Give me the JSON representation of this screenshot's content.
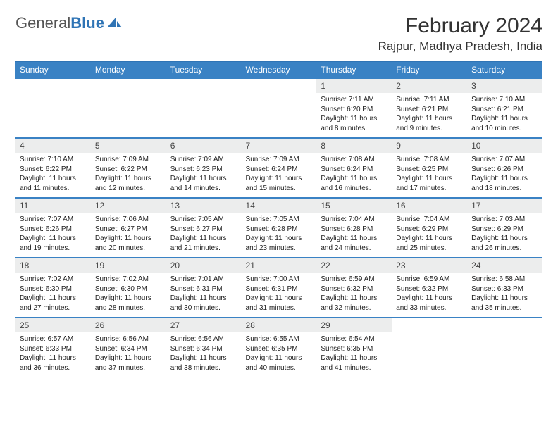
{
  "brand": {
    "part1": "General",
    "part2": "Blue"
  },
  "title": "February 2024",
  "location": "Rajpur, Madhya Pradesh, India",
  "colors": {
    "header_bg": "#3a82c4",
    "header_text": "#ffffff",
    "border": "#2f74b5",
    "daynum_bg": "#eceded",
    "brand_blue": "#2f74b5",
    "brand_gray": "#555555",
    "background": "#ffffff"
  },
  "day_headers": [
    "Sunday",
    "Monday",
    "Tuesday",
    "Wednesday",
    "Thursday",
    "Friday",
    "Saturday"
  ],
  "weeks": [
    [
      {
        "num": "",
        "sunrise": "",
        "sunset": "",
        "daylight": ""
      },
      {
        "num": "",
        "sunrise": "",
        "sunset": "",
        "daylight": ""
      },
      {
        "num": "",
        "sunrise": "",
        "sunset": "",
        "daylight": ""
      },
      {
        "num": "",
        "sunrise": "",
        "sunset": "",
        "daylight": ""
      },
      {
        "num": "1",
        "sunrise": "Sunrise: 7:11 AM",
        "sunset": "Sunset: 6:20 PM",
        "daylight": "Daylight: 11 hours and 8 minutes."
      },
      {
        "num": "2",
        "sunrise": "Sunrise: 7:11 AM",
        "sunset": "Sunset: 6:21 PM",
        "daylight": "Daylight: 11 hours and 9 minutes."
      },
      {
        "num": "3",
        "sunrise": "Sunrise: 7:10 AM",
        "sunset": "Sunset: 6:21 PM",
        "daylight": "Daylight: 11 hours and 10 minutes."
      }
    ],
    [
      {
        "num": "4",
        "sunrise": "Sunrise: 7:10 AM",
        "sunset": "Sunset: 6:22 PM",
        "daylight": "Daylight: 11 hours and 11 minutes."
      },
      {
        "num": "5",
        "sunrise": "Sunrise: 7:09 AM",
        "sunset": "Sunset: 6:22 PM",
        "daylight": "Daylight: 11 hours and 12 minutes."
      },
      {
        "num": "6",
        "sunrise": "Sunrise: 7:09 AM",
        "sunset": "Sunset: 6:23 PM",
        "daylight": "Daylight: 11 hours and 14 minutes."
      },
      {
        "num": "7",
        "sunrise": "Sunrise: 7:09 AM",
        "sunset": "Sunset: 6:24 PM",
        "daylight": "Daylight: 11 hours and 15 minutes."
      },
      {
        "num": "8",
        "sunrise": "Sunrise: 7:08 AM",
        "sunset": "Sunset: 6:24 PM",
        "daylight": "Daylight: 11 hours and 16 minutes."
      },
      {
        "num": "9",
        "sunrise": "Sunrise: 7:08 AM",
        "sunset": "Sunset: 6:25 PM",
        "daylight": "Daylight: 11 hours and 17 minutes."
      },
      {
        "num": "10",
        "sunrise": "Sunrise: 7:07 AM",
        "sunset": "Sunset: 6:26 PM",
        "daylight": "Daylight: 11 hours and 18 minutes."
      }
    ],
    [
      {
        "num": "11",
        "sunrise": "Sunrise: 7:07 AM",
        "sunset": "Sunset: 6:26 PM",
        "daylight": "Daylight: 11 hours and 19 minutes."
      },
      {
        "num": "12",
        "sunrise": "Sunrise: 7:06 AM",
        "sunset": "Sunset: 6:27 PM",
        "daylight": "Daylight: 11 hours and 20 minutes."
      },
      {
        "num": "13",
        "sunrise": "Sunrise: 7:05 AM",
        "sunset": "Sunset: 6:27 PM",
        "daylight": "Daylight: 11 hours and 21 minutes."
      },
      {
        "num": "14",
        "sunrise": "Sunrise: 7:05 AM",
        "sunset": "Sunset: 6:28 PM",
        "daylight": "Daylight: 11 hours and 23 minutes."
      },
      {
        "num": "15",
        "sunrise": "Sunrise: 7:04 AM",
        "sunset": "Sunset: 6:28 PM",
        "daylight": "Daylight: 11 hours and 24 minutes."
      },
      {
        "num": "16",
        "sunrise": "Sunrise: 7:04 AM",
        "sunset": "Sunset: 6:29 PM",
        "daylight": "Daylight: 11 hours and 25 minutes."
      },
      {
        "num": "17",
        "sunrise": "Sunrise: 7:03 AM",
        "sunset": "Sunset: 6:29 PM",
        "daylight": "Daylight: 11 hours and 26 minutes."
      }
    ],
    [
      {
        "num": "18",
        "sunrise": "Sunrise: 7:02 AM",
        "sunset": "Sunset: 6:30 PM",
        "daylight": "Daylight: 11 hours and 27 minutes."
      },
      {
        "num": "19",
        "sunrise": "Sunrise: 7:02 AM",
        "sunset": "Sunset: 6:30 PM",
        "daylight": "Daylight: 11 hours and 28 minutes."
      },
      {
        "num": "20",
        "sunrise": "Sunrise: 7:01 AM",
        "sunset": "Sunset: 6:31 PM",
        "daylight": "Daylight: 11 hours and 30 minutes."
      },
      {
        "num": "21",
        "sunrise": "Sunrise: 7:00 AM",
        "sunset": "Sunset: 6:31 PM",
        "daylight": "Daylight: 11 hours and 31 minutes."
      },
      {
        "num": "22",
        "sunrise": "Sunrise: 6:59 AM",
        "sunset": "Sunset: 6:32 PM",
        "daylight": "Daylight: 11 hours and 32 minutes."
      },
      {
        "num": "23",
        "sunrise": "Sunrise: 6:59 AM",
        "sunset": "Sunset: 6:32 PM",
        "daylight": "Daylight: 11 hours and 33 minutes."
      },
      {
        "num": "24",
        "sunrise": "Sunrise: 6:58 AM",
        "sunset": "Sunset: 6:33 PM",
        "daylight": "Daylight: 11 hours and 35 minutes."
      }
    ],
    [
      {
        "num": "25",
        "sunrise": "Sunrise: 6:57 AM",
        "sunset": "Sunset: 6:33 PM",
        "daylight": "Daylight: 11 hours and 36 minutes."
      },
      {
        "num": "26",
        "sunrise": "Sunrise: 6:56 AM",
        "sunset": "Sunset: 6:34 PM",
        "daylight": "Daylight: 11 hours and 37 minutes."
      },
      {
        "num": "27",
        "sunrise": "Sunrise: 6:56 AM",
        "sunset": "Sunset: 6:34 PM",
        "daylight": "Daylight: 11 hours and 38 minutes."
      },
      {
        "num": "28",
        "sunrise": "Sunrise: 6:55 AM",
        "sunset": "Sunset: 6:35 PM",
        "daylight": "Daylight: 11 hours and 40 minutes."
      },
      {
        "num": "29",
        "sunrise": "Sunrise: 6:54 AM",
        "sunset": "Sunset: 6:35 PM",
        "daylight": "Daylight: 11 hours and 41 minutes."
      },
      {
        "num": "",
        "sunrise": "",
        "sunset": "",
        "daylight": ""
      },
      {
        "num": "",
        "sunrise": "",
        "sunset": "",
        "daylight": ""
      }
    ]
  ]
}
